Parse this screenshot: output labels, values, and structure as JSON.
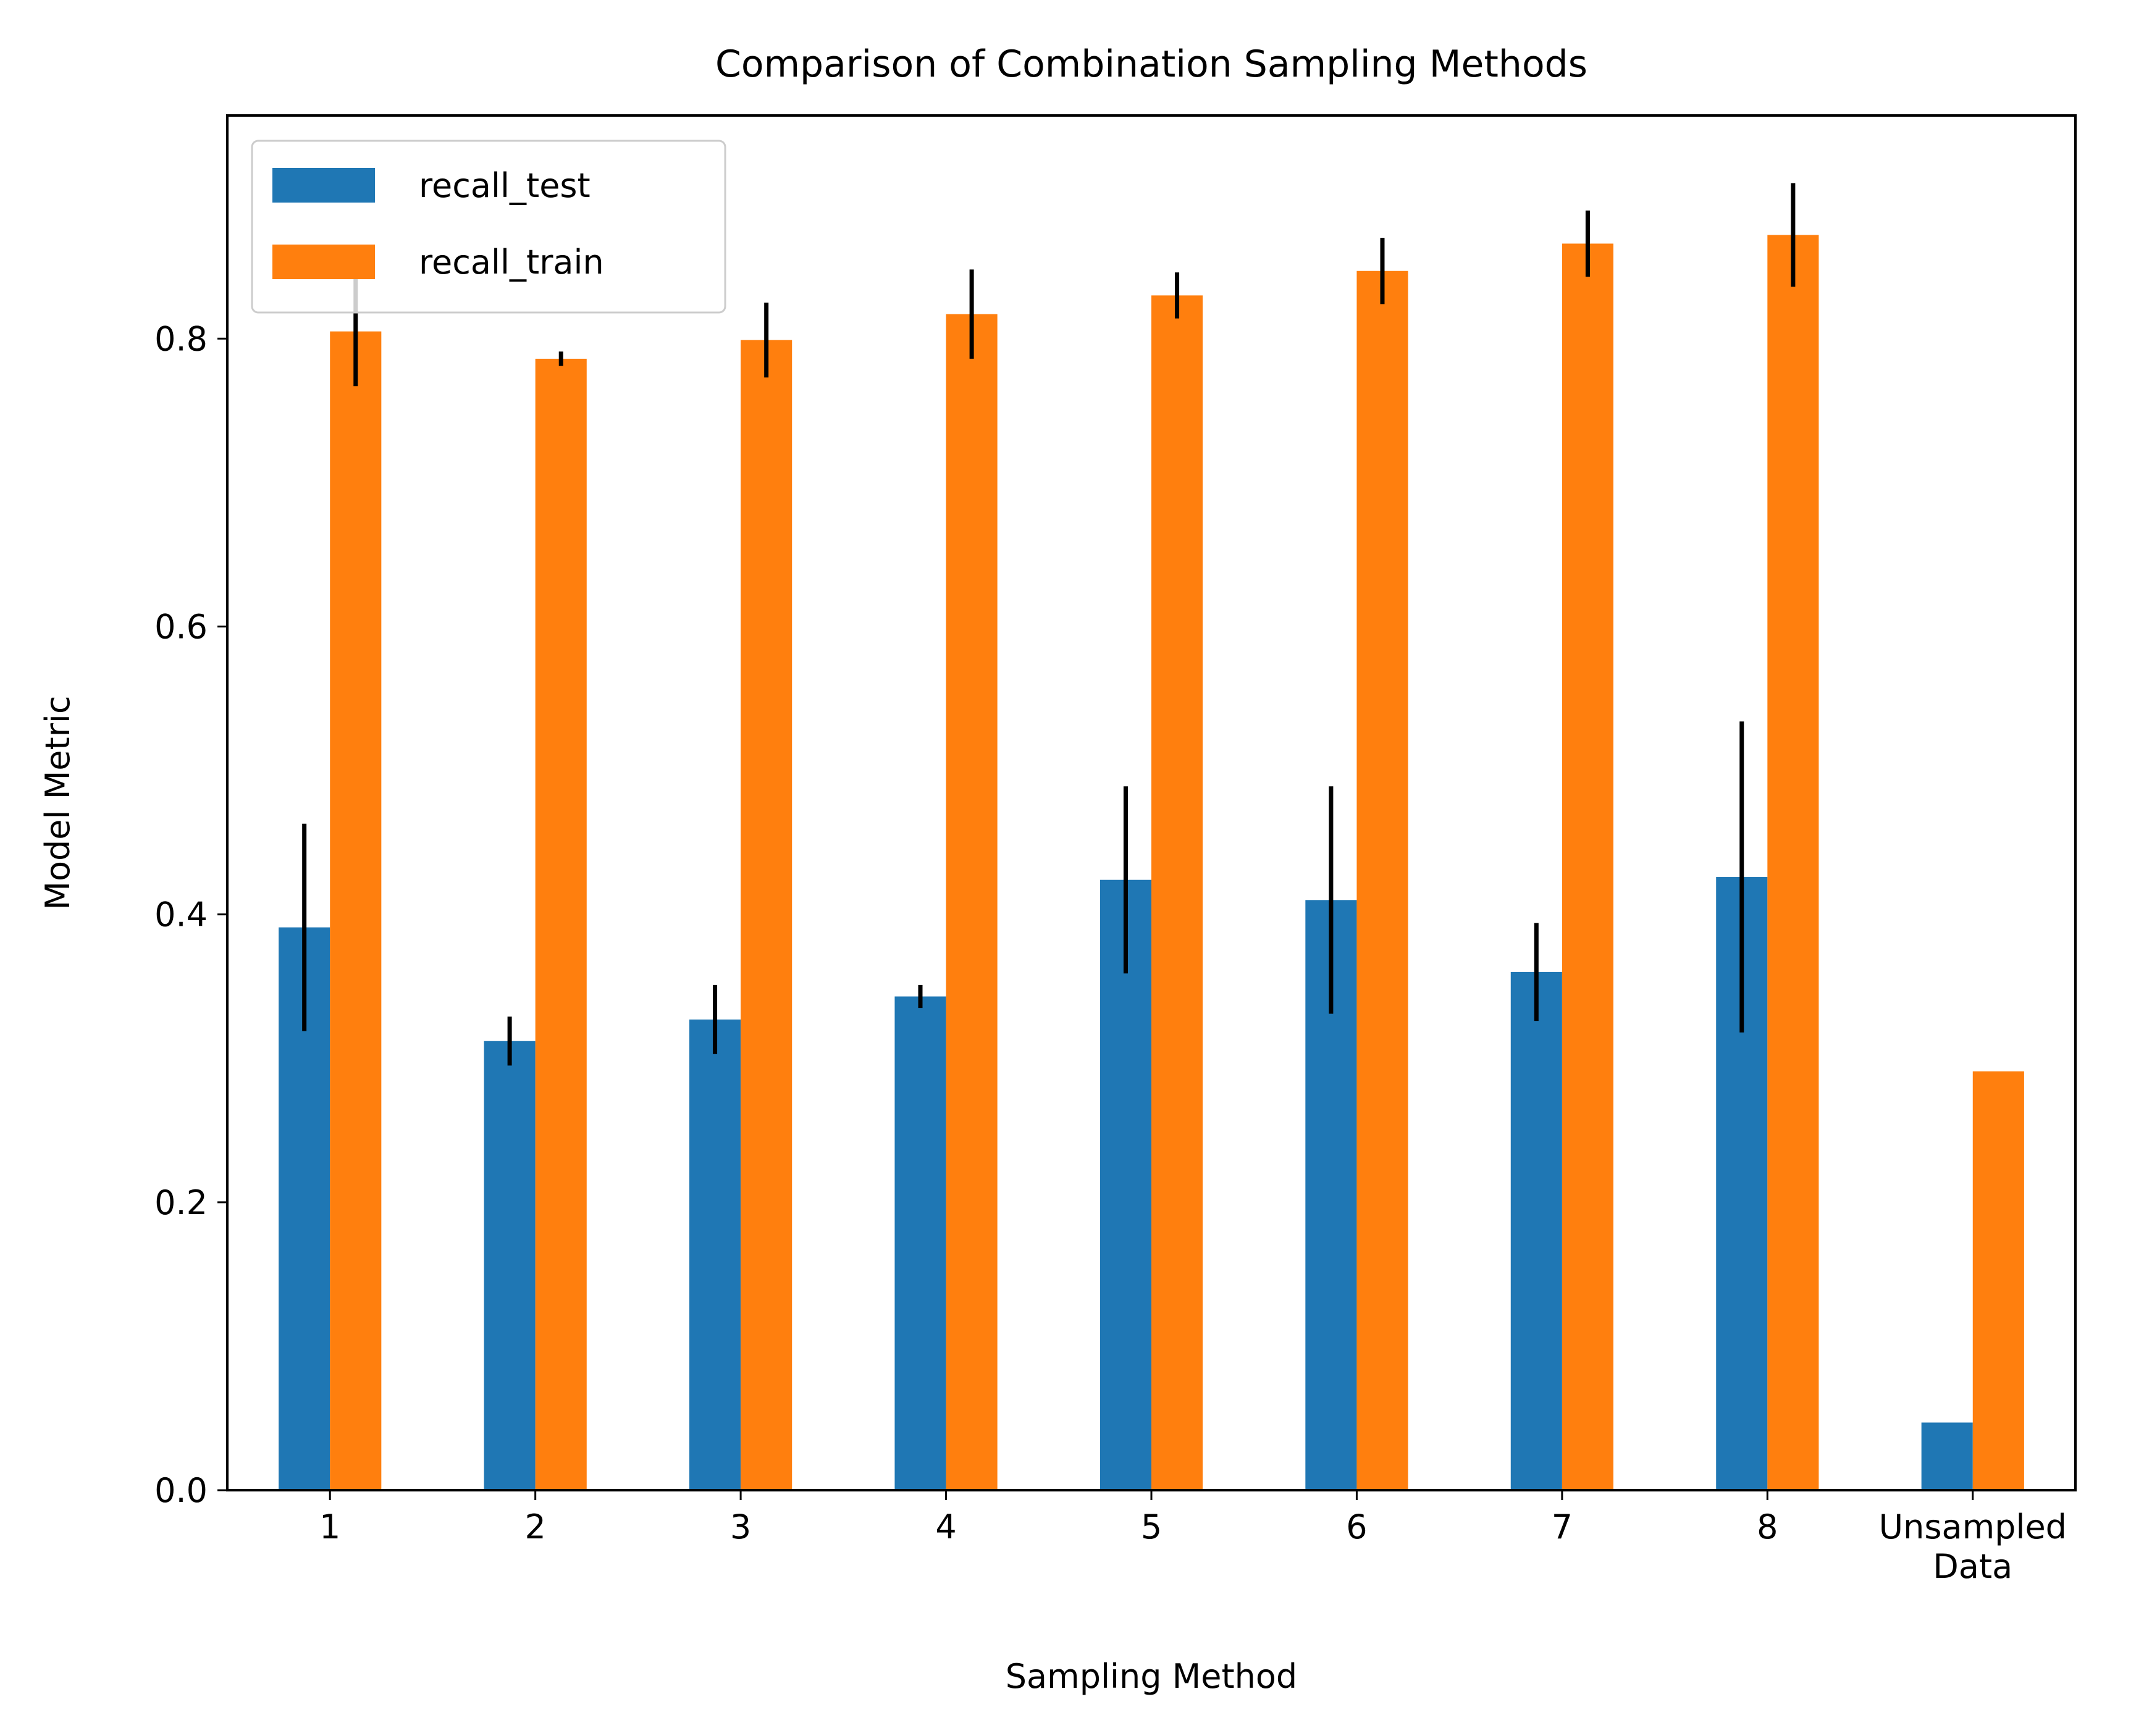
{
  "chart_data": {
    "type": "bar",
    "title": "Comparison of Combination Sampling Methods",
    "xlabel": "Sampling Method",
    "ylabel": "Model Metric",
    "categories": [
      [
        "1"
      ],
      [
        "2"
      ],
      [
        "3"
      ],
      [
        "4"
      ],
      [
        "5"
      ],
      [
        "6"
      ],
      [
        "7"
      ],
      [
        "8"
      ],
      [
        "Unsampled",
        "Data"
      ]
    ],
    "series": [
      {
        "name": "recall_test",
        "color": "#1f77b4",
        "values": [
          0.391,
          0.312,
          0.327,
          0.343,
          0.424,
          0.41,
          0.36,
          0.426,
          0.047
        ],
        "errors": [
          0.072,
          0.017,
          0.024,
          0.008,
          0.065,
          0.079,
          0.034,
          0.108,
          null
        ]
      },
      {
        "name": "recall_train",
        "color": "#ff7f0e",
        "values": [
          0.805,
          0.786,
          0.799,
          0.817,
          0.83,
          0.847,
          0.866,
          0.872,
          0.291
        ],
        "errors": [
          0.038,
          0.005,
          0.026,
          0.031,
          0.016,
          0.023,
          0.023,
          0.036,
          null
        ]
      }
    ],
    "ylim": [
      0,
      0.955
    ],
    "yticks": [
      0.0,
      0.2,
      0.4,
      0.6,
      0.8
    ],
    "ytick_labels": [
      "0.0",
      "0.2",
      "0.4",
      "0.6",
      "0.8"
    ],
    "grid": false,
    "legend_position": "upper-left",
    "error_bar_color": "#000000"
  }
}
